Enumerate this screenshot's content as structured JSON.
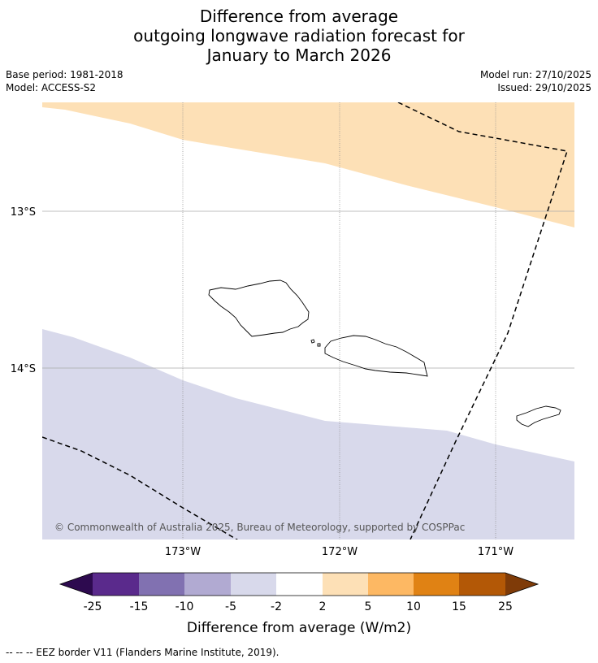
{
  "title": {
    "line1": "Difference from average",
    "line2": "outgoing longwave radiation forecast for",
    "line3": "January to March 2026"
  },
  "meta": {
    "base_period": "Base period: 1981-2018",
    "model": "Model: ACCESS-S2",
    "model_run": "Model run: 27/10/2025",
    "issued": "Issued: 29/10/2025"
  },
  "map": {
    "lat_labels": [
      "13°S",
      "14°S"
    ],
    "lon_labels": [
      "173°W",
      "172°W",
      "171°W"
    ],
    "copyright": "© Commonwealth of Australia 2025, Bureau of Meteorology, supported by COSPPac",
    "colors": {
      "positive_2_5": "#fde0b6",
      "negative_2_5": "#d8d9eb",
      "coast": "#000000",
      "eez": "#000000"
    }
  },
  "colorbar": {
    "label": "Difference from average (W/m2)",
    "ticks": [
      "-25",
      "-15",
      "-10",
      "-5",
      "-2",
      "2",
      "5",
      "10",
      "15",
      "25"
    ],
    "bins": [
      {
        "range": "< -25",
        "color": "#2d0a4f"
      },
      {
        "range": "-25 to -15",
        "color": "#5a2a8c"
      },
      {
        "range": "-15 to -10",
        "color": "#8171b1"
      },
      {
        "range": "-10 to -5",
        "color": "#b1aad2"
      },
      {
        "range": "-5 to -2",
        "color": "#d8d9eb"
      },
      {
        "range": "-2 to 2",
        "color": "#ffffff"
      },
      {
        "range": "2 to 5",
        "color": "#fde0b6"
      },
      {
        "range": "5 to 10",
        "color": "#fdb863"
      },
      {
        "range": "10 to 15",
        "color": "#e08214"
      },
      {
        "range": "15 to 25",
        "color": "#b35806"
      },
      {
        "range": "> 25",
        "color": "#7f3b08"
      }
    ]
  },
  "footnote": "--  --  -- EEZ border V11 (Flanders Marine Institute, 2019)."
}
